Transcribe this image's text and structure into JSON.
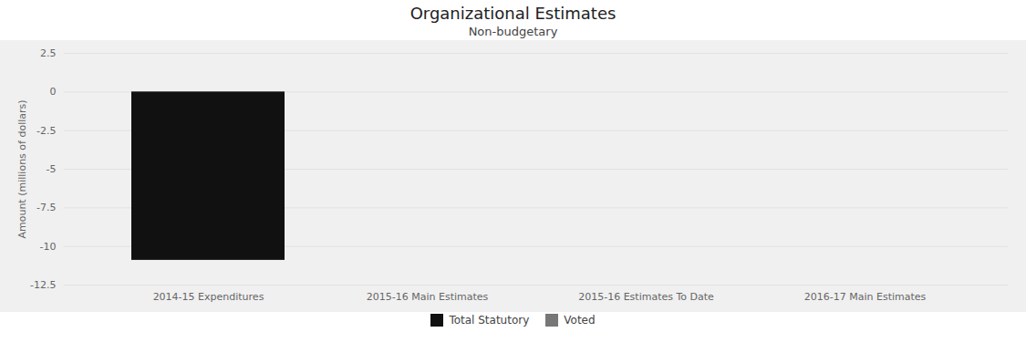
{
  "chart_data": {
    "type": "bar",
    "title": "Organizational Estimates",
    "subtitle": "Non-budgetary",
    "ylabel": "Amount (millions of dollars)",
    "categories": [
      "2014-15 Expenditures",
      "2015-16 Main Estimates",
      "2015-16 Estimates To Date",
      "2016-17 Main Estimates"
    ],
    "series": [
      {
        "name": "Total Statutory",
        "color": "#111111",
        "values": [
          -10.9,
          0,
          0,
          0
        ]
      },
      {
        "name": "Voted",
        "color": "#777777",
        "values": [
          0,
          0,
          0,
          0
        ]
      }
    ],
    "stacked": true,
    "ylim": [
      -12.5,
      2.5
    ],
    "yticks": [
      2.5,
      0,
      -2.5,
      -5,
      -7.5,
      -10,
      -12.5
    ],
    "grid": true,
    "legend": "bottom"
  }
}
